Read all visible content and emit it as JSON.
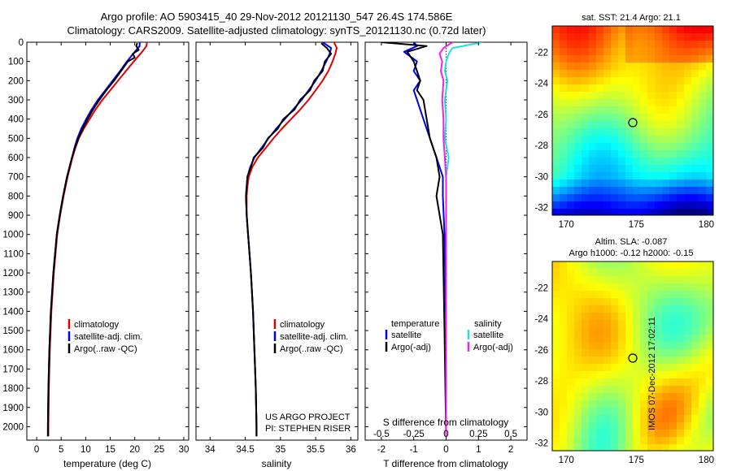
{
  "header": {
    "line1": "Argo profile: AO 5903415_40 29-Nov-2012 20121130_547 26.4S 174.586E",
    "line2": "Climatology: CARS2009. Satellite-adjusted climatology: synTS_20121130.nc (0.72d later)"
  },
  "credits": {
    "line1": "US ARGO PROJECT",
    "line2": "PI: STEPHEN RISER"
  },
  "timestamp": "IMOS 07-Dec-2012 17:02:11",
  "colors": {
    "climatology": "#e00000",
    "satellite": "#0000ee",
    "argo": "#000000",
    "sal_satellite": "#22e0e0",
    "sal_argo": "#ee22ee"
  },
  "chart_data": [
    {
      "type": "line",
      "xlabel": "temperature (deg C)",
      "xlim": [
        -2,
        31
      ],
      "xticks": [
        0,
        5,
        10,
        15,
        20,
        25,
        30
      ],
      "ylim": [
        0,
        2070
      ],
      "yticks": [
        0,
        100,
        200,
        300,
        400,
        500,
        600,
        700,
        800,
        900,
        1000,
        1100,
        1200,
        1300,
        1400,
        1500,
        1600,
        1700,
        1800,
        1900,
        2000
      ],
      "legend": [
        "climatology",
        "satellite-adj. clim.",
        "Argo(..raw -QC)"
      ],
      "series": [
        {
          "name": "climatology",
          "depth": [
            0,
            20,
            50,
            100,
            150,
            200,
            250,
            300,
            350,
            400,
            450,
            500,
            550,
            600,
            700,
            800,
            900,
            1000,
            1200,
            1400,
            1600,
            1800,
            2000,
            2050
          ],
          "values": [
            22.5,
            22.4,
            21.5,
            19.8,
            18.2,
            16.6,
            15.0,
            13.4,
            12.0,
            10.8,
            9.6,
            8.6,
            7.9,
            7.3,
            6.3,
            5.5,
            4.8,
            4.2,
            3.5,
            3.0,
            2.7,
            2.5,
            2.4,
            2.4
          ]
        },
        {
          "name": "satellite-adj. clim.",
          "depth": [
            0,
            20,
            50,
            100,
            150,
            200,
            250,
            300,
            350,
            400,
            450,
            500,
            550,
            600,
            700,
            800,
            900,
            1000,
            1200,
            1400,
            1600,
            1800,
            2000,
            2050
          ],
          "values": [
            21.0,
            21.0,
            20.0,
            18.4,
            17.0,
            15.5,
            14.0,
            12.5,
            11.2,
            10.1,
            9.1,
            8.3,
            7.7,
            7.2,
            6.2,
            5.4,
            4.7,
            4.1,
            3.4,
            2.9,
            2.6,
            2.4,
            2.3,
            2.3
          ]
        },
        {
          "name": "Argo(..raw -QC)",
          "depth": [
            5,
            20,
            40,
            60,
            80,
            100,
            150,
            200,
            250,
            300,
            350,
            400,
            450,
            500,
            550,
            600,
            700,
            800,
            900,
            1000,
            1200,
            1400,
            1600,
            1800,
            2000,
            2050
          ],
          "values": [
            20.5,
            20.3,
            20.8,
            19.6,
            20.0,
            18.6,
            17.2,
            15.8,
            14.2,
            12.8,
            11.5,
            10.4,
            9.4,
            8.5,
            7.8,
            7.2,
            6.2,
            5.4,
            4.7,
            4.1,
            3.4,
            2.9,
            2.6,
            2.4,
            2.3,
            2.3
          ]
        }
      ]
    },
    {
      "type": "line",
      "xlabel": "salinity",
      "xlim": [
        33.8,
        36.1
      ],
      "xticks": [
        34,
        34.5,
        35,
        35.5,
        36
      ],
      "xtick_labels": [
        "34",
        "34.5",
        "35",
        "35.5",
        "36"
      ],
      "ylim": [
        0,
        2070
      ],
      "legend": [
        "climatology",
        "satellite-adj. clim.",
        "Argo(..raw -QC)"
      ],
      "series": [
        {
          "name": "climatology",
          "depth": [
            0,
            30,
            60,
            100,
            150,
            200,
            250,
            300,
            350,
            400,
            450,
            500,
            550,
            600,
            650,
            700,
            750,
            800,
            900,
            1000,
            1100,
            1200,
            1400,
            1600,
            1800,
            2000,
            2050
          ],
          "values": [
            35.76,
            35.8,
            35.78,
            35.74,
            35.68,
            35.6,
            35.5,
            35.4,
            35.28,
            35.15,
            35.02,
            34.9,
            34.79,
            34.68,
            34.6,
            34.55,
            34.53,
            34.52,
            34.52,
            34.54,
            34.56,
            34.58,
            34.61,
            34.63,
            34.65,
            34.66,
            34.66
          ]
        },
        {
          "name": "satellite-adj. clim.",
          "depth": [
            0,
            30,
            60,
            100,
            150,
            200,
            250,
            300,
            350,
            400,
            450,
            500,
            550,
            600,
            650,
            700,
            750,
            800,
            900,
            1000,
            1100,
            1200,
            1400,
            1600,
            1800,
            2000,
            2050
          ],
          "values": [
            35.6,
            35.72,
            35.7,
            35.65,
            35.58,
            35.5,
            35.4,
            35.3,
            35.18,
            35.06,
            34.94,
            34.83,
            34.73,
            34.63,
            34.57,
            34.53,
            34.52,
            34.51,
            34.52,
            34.54,
            34.56,
            34.58,
            34.61,
            34.63,
            34.65,
            34.66,
            34.66
          ]
        },
        {
          "name": "Argo(..raw -QC)",
          "depth": [
            5,
            30,
            60,
            100,
            150,
            200,
            250,
            300,
            350,
            400,
            450,
            500,
            550,
            600,
            650,
            700,
            750,
            800,
            900,
            1000,
            1100,
            1200,
            1400,
            1600,
            1800,
            2000,
            2050
          ],
          "values": [
            35.58,
            35.66,
            35.72,
            35.63,
            35.6,
            35.48,
            35.42,
            35.28,
            35.2,
            35.04,
            34.96,
            34.82,
            34.75,
            34.62,
            34.58,
            34.53,
            34.52,
            34.51,
            34.52,
            34.54,
            34.56,
            34.58,
            34.61,
            34.63,
            34.65,
            34.66,
            34.66
          ]
        }
      ]
    },
    {
      "type": "line",
      "xlabel": "T difference from climatology",
      "xlabel_top": "S difference from climatology",
      "xlim": [
        -2.5,
        2.5
      ],
      "xticks": [
        -2,
        -1,
        0,
        1,
        2
      ],
      "top_ticks": [
        "-0.5",
        "-0.25",
        "0",
        "0.25",
        "0.5"
      ],
      "ylim": [
        0,
        2070
      ],
      "legend": {
        "temperature_header": "temperature",
        "salinity_header": "salinity",
        "items": [
          "satellite",
          "Argo(-adj)",
          "satellite",
          "Argo(-adj)"
        ]
      },
      "series": [
        {
          "name": "temperature satellite",
          "depth": [
            0,
            20,
            50,
            100,
            150,
            200,
            250,
            300,
            400,
            500,
            600,
            700,
            800,
            1000,
            1500,
            2050
          ],
          "values": [
            -1.0,
            -0.9,
            -1.3,
            -0.9,
            -1.0,
            -0.8,
            -1.0,
            -0.9,
            -0.7,
            -0.5,
            -0.3,
            -0.1,
            -0.1,
            -0.05,
            0,
            0
          ]
        },
        {
          "name": "temperature Argo(-adj)",
          "depth": [
            0,
            20,
            50,
            100,
            150,
            200,
            250,
            300,
            400,
            500,
            600,
            700,
            800,
            1000,
            1500,
            2050
          ],
          "values": [
            -2.0,
            -0.6,
            -1.2,
            -1.0,
            -0.9,
            -0.8,
            -0.9,
            -0.7,
            -0.6,
            -0.5,
            -0.3,
            -0.2,
            -0.3,
            -0.1,
            -0.05,
            0
          ]
        },
        {
          "name": "salinity satellite",
          "depth": [
            0,
            30,
            60,
            100,
            150,
            200,
            300,
            400,
            500,
            600,
            700,
            800,
            1000,
            1500,
            2050
          ],
          "values": [
            0.28,
            0.05,
            0.02,
            0.0,
            -0.01,
            0.01,
            -0.01,
            0.0,
            -0.01,
            0.02,
            0.0,
            0.0,
            0.0,
            0.0,
            0.0
          ]
        },
        {
          "name": "salinity Argo(-adj)",
          "depth": [
            0,
            30,
            60,
            100,
            150,
            200,
            300,
            400,
            500,
            600,
            700,
            800,
            1000,
            1500,
            2050
          ],
          "values": [
            0.05,
            -0.02,
            -0.05,
            -0.03,
            -0.04,
            -0.02,
            -0.03,
            -0.02,
            -0.02,
            -0.01,
            0.0,
            0.0,
            0.0,
            0.0,
            0.0
          ]
        }
      ]
    },
    {
      "type": "heatmap",
      "title": "sat. SST: 21.4  Argo: 21.1",
      "xticks": [
        170,
        175,
        180
      ],
      "yticks": [
        -22,
        -24,
        -26,
        -28,
        -30,
        -32
      ],
      "xlim": [
        169,
        180.5
      ],
      "ylim": [
        -32.5,
        -20.3
      ],
      "marker": {
        "lon": 174.586,
        "lat": -26.4
      }
    },
    {
      "type": "heatmap",
      "title_line1": "Altim. SLA: -0.087",
      "title_line2": "Argo h1000: -0.12 h2000: -0.15",
      "xticks": [
        170,
        175,
        180
      ],
      "yticks": [
        -22,
        -24,
        -26,
        -28,
        -30,
        -32
      ],
      "xlim": [
        169,
        180.5
      ],
      "ylim": [
        -32.5,
        -20.3
      ],
      "marker": {
        "lon": 174.586,
        "lat": -26.4
      }
    }
  ]
}
